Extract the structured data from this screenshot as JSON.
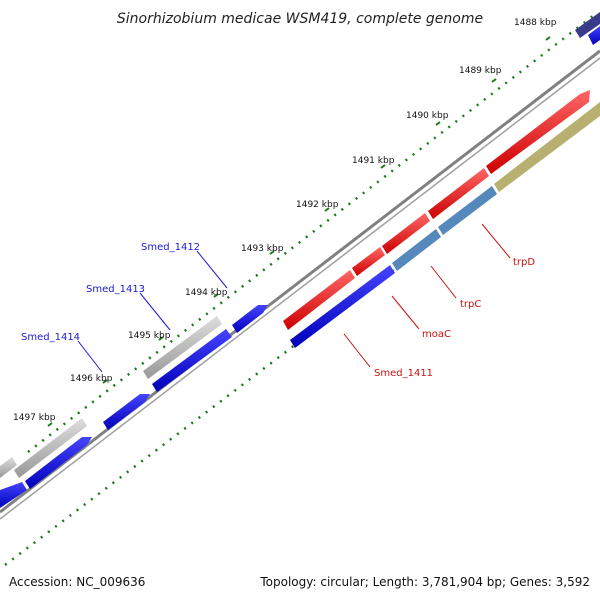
{
  "title": "Sinorhizobium medicae WSM419, complete genome",
  "accession": "Accession: NC_009636",
  "summary": "Topology: circular; Length: 3,781,904 bp; Genes: 3,592",
  "scale_labels": [
    "1488 kbp",
    "1489 kbp",
    "1490 kbp",
    "1491 kbp",
    "1492 kbp",
    "1493 kbp",
    "1494 kbp",
    "1495 kbp",
    "1496 kbp",
    "1497 kbp"
  ],
  "gene_labels_left": [
    "Smed_1412",
    "Smed_1413",
    "Smed_1414"
  ],
  "gene_labels_right": [
    "trpD",
    "trpC",
    "moaC",
    "Smed_1411"
  ],
  "colors": {
    "forward": "#ee1111",
    "reverse": "#1111dd",
    "pseudo": "#b0b0b0",
    "dark_blue": "#3a3a8a",
    "steel": "#5588bb",
    "olive": "#b8b070",
    "backbone": "#808080",
    "ticks": "#1a7a1a"
  }
}
